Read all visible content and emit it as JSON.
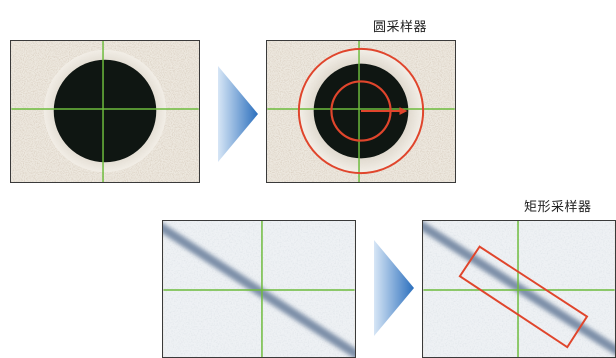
{
  "labels": {
    "circle_sampler": "圆采样器",
    "rect_sampler": "矩形采样器"
  },
  "colors": {
    "crosshair": "#6dbb3c",
    "sampler": "#e0452c",
    "arrow_light": "#d7e6f6",
    "arrow_dark": "#2b6fbd",
    "hole": "#0f1612",
    "scratch": "#7d8fa8"
  },
  "icons": {
    "arrow": "chevron-right-icon"
  }
}
